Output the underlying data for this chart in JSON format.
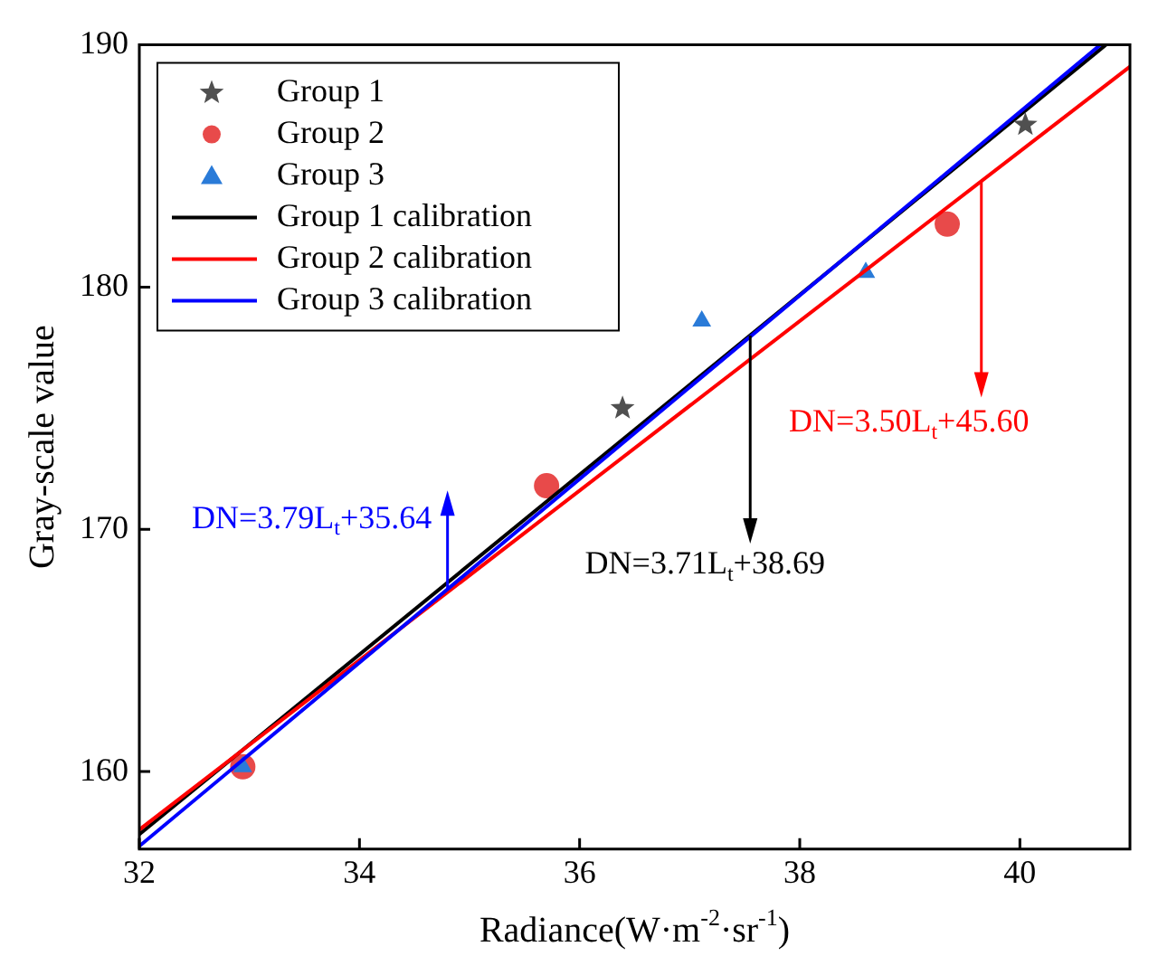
{
  "chart_data": {
    "type": "scatter",
    "xlabel": "Radiance(W·m$^{-2}$·sr$^{-1}$)",
    "ylabel": "Gray-scale value",
    "xlim": [
      32,
      41
    ],
    "xticks": [
      32,
      34,
      36,
      38,
      40
    ],
    "ylim": [
      156.8,
      190
    ],
    "yticks": [
      160,
      170,
      180,
      190
    ],
    "legend": "top left",
    "grid": false,
    "series": [
      {
        "name": "Group 1",
        "type": "scatter",
        "marker": "star",
        "color": "#505050",
        "x": [
          36.39,
          40.05
        ],
        "values": [
          175.0,
          186.7
        ]
      },
      {
        "name": "Group 2",
        "type": "scatter",
        "marker": "circle",
        "color": "#e84a4a",
        "x": [
          32.94,
          35.7,
          39.34
        ],
        "values": [
          160.2,
          171.8,
          182.6
        ]
      },
      {
        "name": "Group 3",
        "type": "scatter",
        "marker": "triangle",
        "color": "#2a7bd8",
        "x": [
          32.94,
          37.11,
          38.6
        ],
        "values": [
          160.2,
          178.6,
          180.6
        ]
      },
      {
        "name": "Group 1 calibration",
        "type": "line",
        "marker": "none",
        "color": "#000000",
        "x": [
          32,
          40.78
        ],
        "values": [
          157.41,
          190
        ]
      },
      {
        "name": "Group 2 calibration",
        "type": "line",
        "marker": "none",
        "color": "#ff0000",
        "x": [
          32,
          41
        ],
        "values": [
          157.6,
          189.1
        ]
      },
      {
        "name": "Group 3 calibration",
        "type": "line",
        "marker": "none",
        "color": "#0000ff",
        "x": [
          32,
          40.73
        ],
        "values": [
          156.92,
          190
        ]
      }
    ],
    "annotations": [
      {
        "text": "DN=3.71L$_{t}$+38.69",
        "x": 37.55,
        "y": 178.0
      },
      {
        "text": "DN=3.50L$_{t}$+45.60",
        "x": 39.65,
        "y": 184.4
      },
      {
        "text": "DN=3.79L$_{t}$+35.64",
        "x": 34.8,
        "y": 167.5
      }
    ]
  }
}
